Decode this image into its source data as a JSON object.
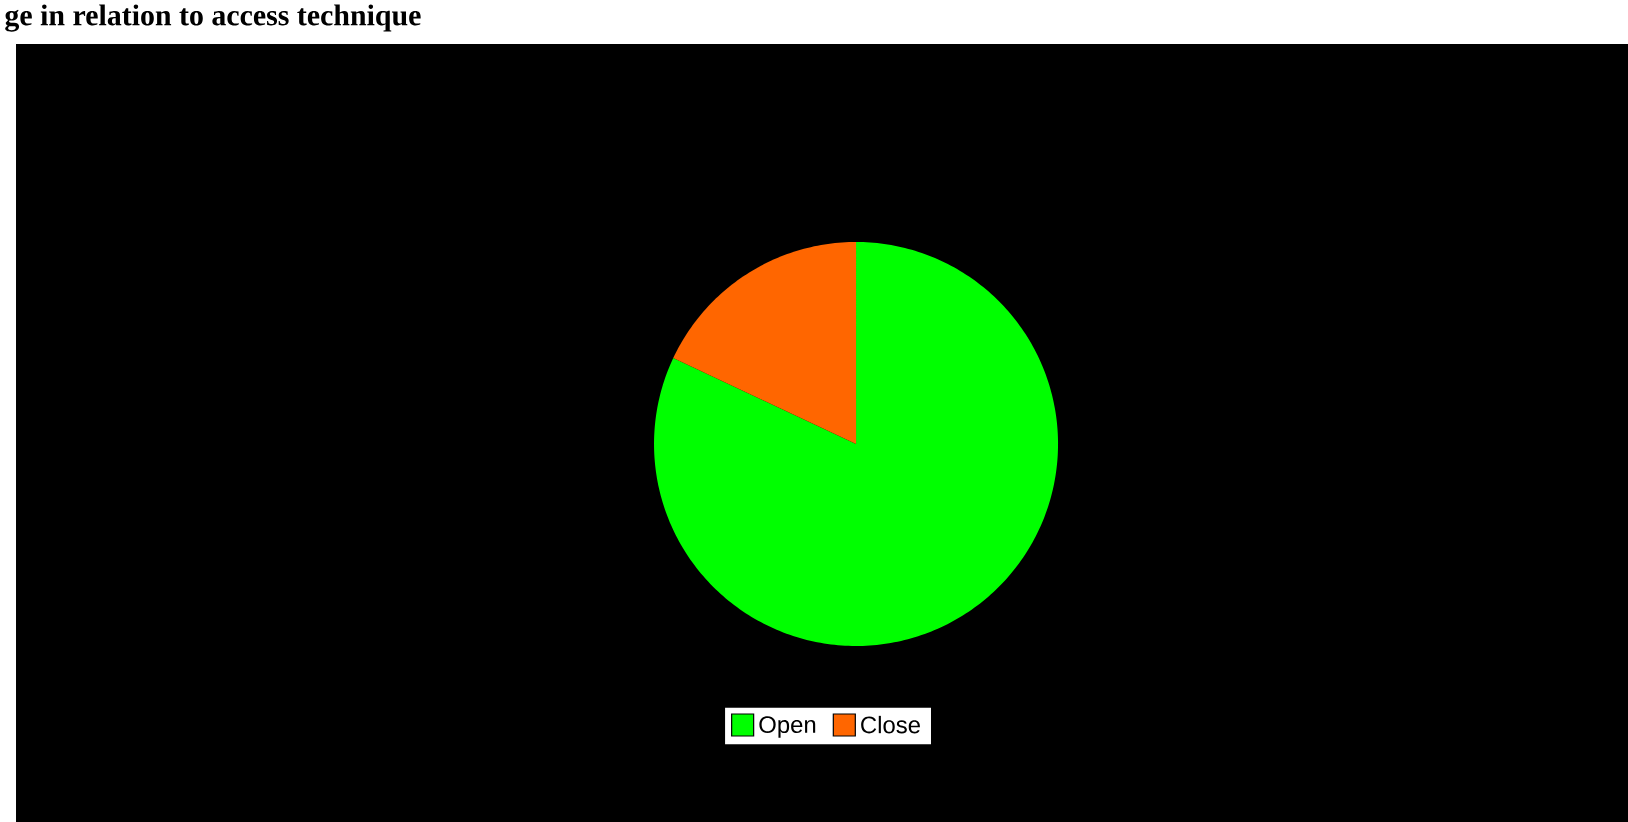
{
  "chart_data": {
    "type": "pie",
    "title": "ge in relation to access technique",
    "categories": [
      "Open",
      "Close"
    ],
    "values": [
      82,
      18
    ],
    "colors": [
      "#00ff00",
      "#ff6600"
    ],
    "legend": "bottom"
  }
}
